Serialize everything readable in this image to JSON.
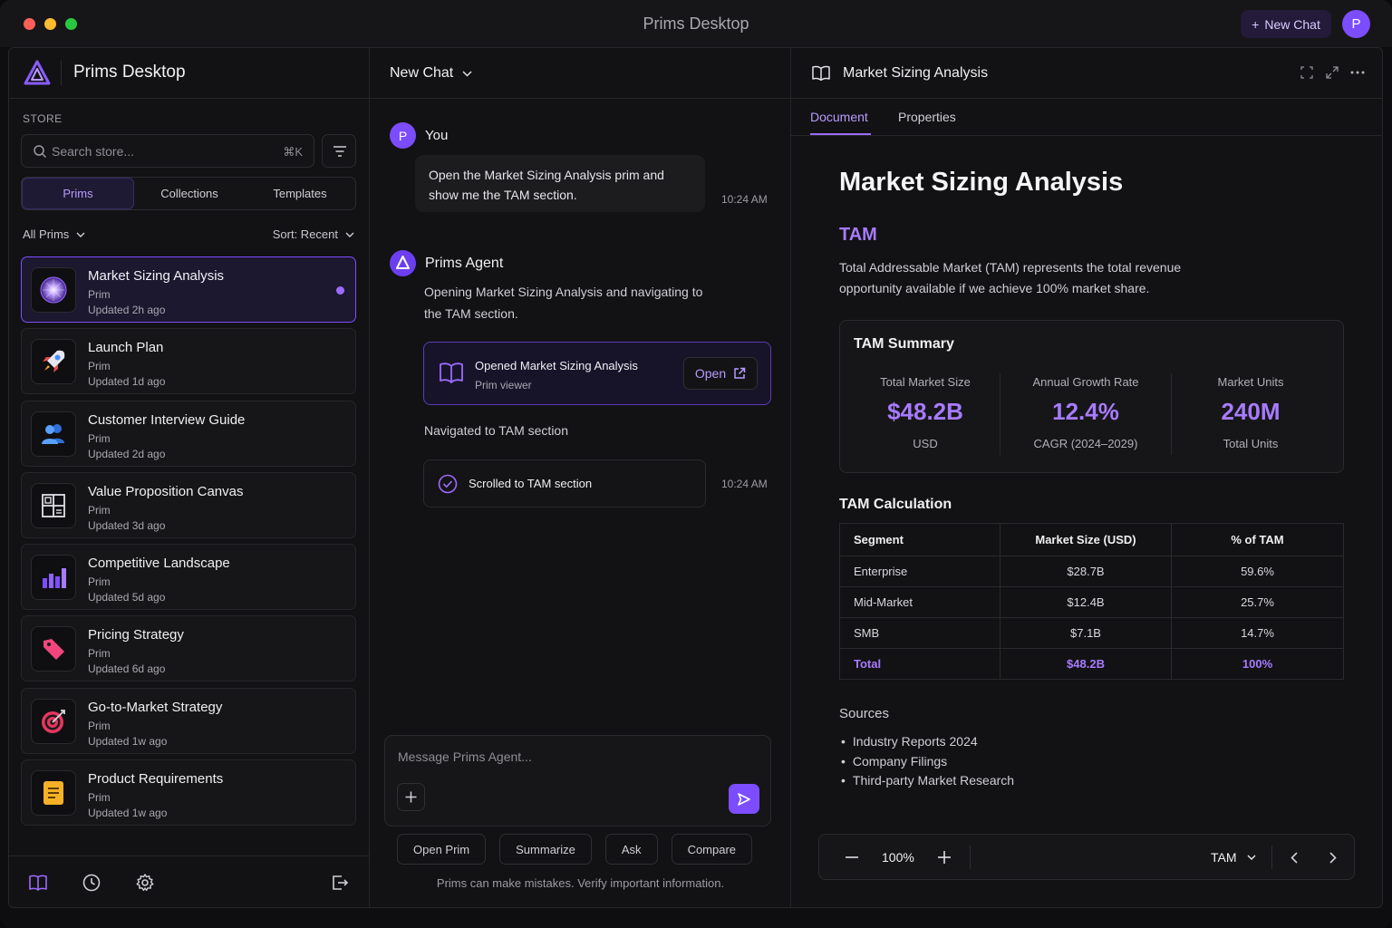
{
  "window": {
    "title": "Prims Desktop",
    "new_chat": "New Chat",
    "user_initial": "P"
  },
  "sidebar": {
    "brand": "Prims Desktop",
    "store_label": "STORE",
    "search_placeholder": "Search store...",
    "search_shortcut": "⌘K",
    "tabs": [
      "Prims",
      "Collections",
      "Templates"
    ],
    "filter": "All Prims",
    "sort": "Sort: Recent",
    "items": [
      {
        "title": "Market Sizing Analysis",
        "type": "Prim",
        "updated": "Updated 2h ago",
        "icon": "orb-icon"
      },
      {
        "title": "Launch Plan",
        "type": "Prim",
        "updated": "Updated 1d ago",
        "icon": "rocket-icon"
      },
      {
        "title": "Customer Interview Guide",
        "type": "Prim",
        "updated": "Updated 2d ago",
        "icon": "people-icon"
      },
      {
        "title": "Value Proposition Canvas",
        "type": "Prim",
        "updated": "Updated 3d ago",
        "icon": "canvas-grid-icon"
      },
      {
        "title": "Competitive Landscape",
        "type": "Prim",
        "updated": "Updated 5d ago",
        "icon": "bar-chart-icon"
      },
      {
        "title": "Pricing Strategy",
        "type": "Prim",
        "updated": "Updated 6d ago",
        "icon": "price-tag-icon"
      },
      {
        "title": "Go-to-Market Strategy",
        "type": "Prim",
        "updated": "Updated 1w ago",
        "icon": "target-icon"
      },
      {
        "title": "Product Requirements",
        "type": "Prim",
        "updated": "Updated 1w ago",
        "icon": "notepad-icon"
      }
    ]
  },
  "chat": {
    "title": "New Chat",
    "user_name": "You",
    "user_initial": "P",
    "user_message": "Open the Market Sizing Analysis prim and show me the TAM section.",
    "user_time": "10:24 AM",
    "agent_name": "Prims Agent",
    "agent_message": "Opening Market Sizing Analysis and navigating to the TAM section.",
    "tool_title": "Opened Market Sizing Analysis",
    "tool_sub": "Prim viewer",
    "open_label": "Open",
    "nav_text": "Navigated to TAM section",
    "status_text": "Scrolled to TAM section",
    "status_time": "10:24 AM",
    "composer_placeholder": "Message Prims Agent...",
    "chips": [
      "Open Prim",
      "Summarize",
      "Ask",
      "Compare"
    ],
    "disclaimer": "Prims can make mistakes. Verify important information."
  },
  "doc": {
    "header_title": "Market Sizing Analysis",
    "tabs": [
      "Document",
      "Properties"
    ],
    "h1": "Market Sizing Analysis",
    "h2": "TAM",
    "intro": "Total Addressable Market (TAM) represents the total revenue opportunity available if we achieve 100% market share.",
    "summary": {
      "title": "TAM Summary",
      "metrics": [
        {
          "label": "Total Market Size",
          "value": "$48.2B",
          "unit": "USD"
        },
        {
          "label": "Annual Growth Rate",
          "value": "12.4%",
          "unit": "CAGR (2024–2029)"
        },
        {
          "label": "Market Units",
          "value": "240M",
          "unit": "Total Units"
        }
      ]
    },
    "calc": {
      "title": "TAM Calculation",
      "headers": [
        "Segment",
        "Market Size (USD)",
        "% of TAM"
      ],
      "rows": [
        [
          "Enterprise",
          "$28.7B",
          "59.6%"
        ],
        [
          "Mid-Market",
          "$12.4B",
          "25.7%"
        ],
        [
          "SMB",
          "$7.1B",
          "14.7%"
        ]
      ],
      "total": [
        "Total",
        "$48.2B",
        "100%"
      ]
    },
    "sources_title": "Sources",
    "sources": [
      "Industry Reports 2024",
      "Company Filings",
      "Third-party Market Research"
    ],
    "zoom": "100%",
    "section": "TAM"
  },
  "colors": {
    "accent": "#7c4dff",
    "accent_text": "#a77bff",
    "background": "#0e0e10"
  }
}
